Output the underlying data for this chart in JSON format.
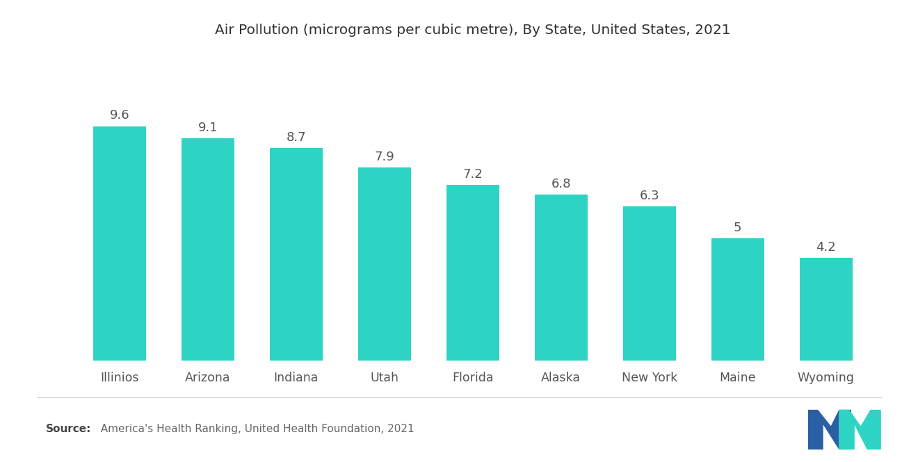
{
  "title": "Air Pollution (micrograms per cubic metre), By State, United States, 2021",
  "categories": [
    "Illinios",
    "Arizona",
    "Indiana",
    "Utah",
    "Florida",
    "Alaska",
    "New York",
    "Maine",
    "Wyoming"
  ],
  "values": [
    9.6,
    9.1,
    8.7,
    7.9,
    7.2,
    6.8,
    6.3,
    5.0,
    4.2
  ],
  "bar_color": "#2DD4C4",
  "background_color": "#FFFFFF",
  "title_fontsize": 14.5,
  "label_fontsize": 12.5,
  "value_fontsize": 13,
  "source_text": "  America's Health Ranking, United Health Foundation, 2021",
  "source_label": "Source:",
  "ylim": [
    0,
    12.5
  ],
  "logo_blue": "#2B5FA5",
  "logo_teal": "#2DD4C4"
}
